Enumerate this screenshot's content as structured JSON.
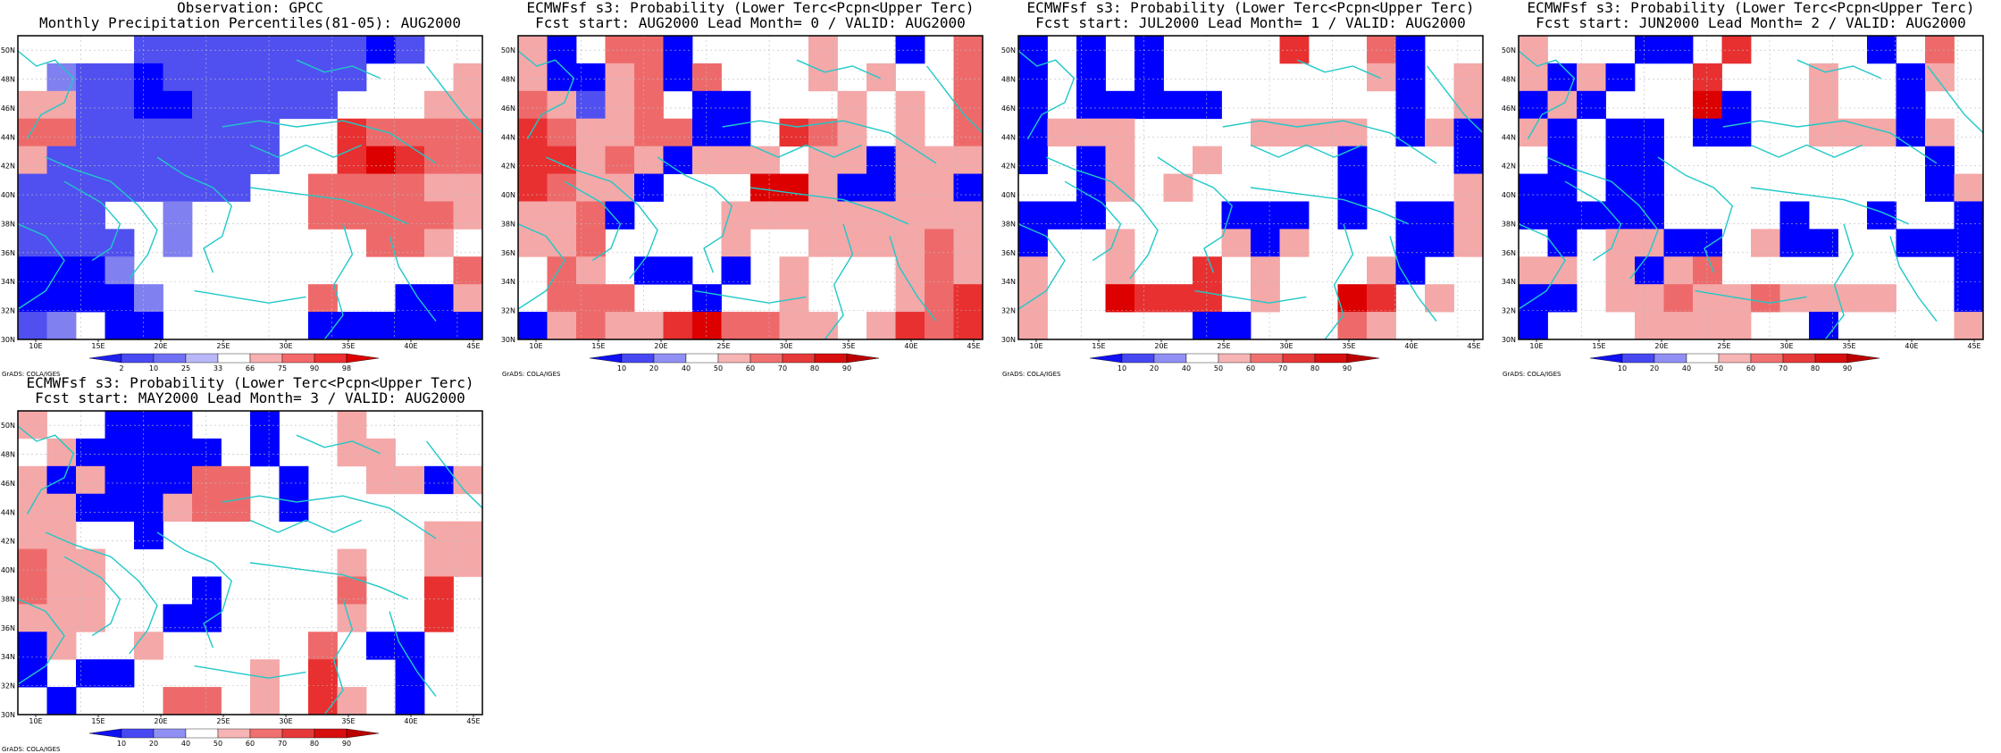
{
  "lon_labels": [
    "10E",
    "15E",
    "20E",
    "25E",
    "30E",
    "35E",
    "40E",
    "45E"
  ],
  "lat_labels": [
    "30N",
    "32N",
    "34N",
    "36N",
    "38N",
    "40N",
    "42N",
    "44N",
    "46N",
    "48N",
    "50N"
  ],
  "credit": "GrADS: COLA/IGES",
  "colorbar_obs": {
    "labels": [
      "2",
      "10",
      "25",
      "33",
      "66",
      "75",
      "90",
      "98"
    ],
    "colors": [
      "#2020ee",
      "#4a4af2",
      "#7070f4",
      "#b8b8f8",
      "#ffffff",
      "#f8b0b0",
      "#f46a6a",
      "#ee3030",
      "#dd0000"
    ]
  },
  "colorbar_fc": {
    "labels": [
      "10",
      "20",
      "40",
      "50",
      "60",
      "70",
      "80",
      "90"
    ],
    "colors": [
      "#1010f0",
      "#4848f2",
      "#9090f4",
      "#ffffff",
      "#f6b4b4",
      "#f07070",
      "#e63a3a",
      "#d80f0f",
      "#bb0000"
    ]
  },
  "legend_cat_colors": {
    "B3": "#0000ff",
    "B2": "#5050f0",
    "B1": "#8080f0",
    "W": "#ffffff",
    "R1": "#f4a8a8",
    "R2": "#ee6a6a",
    "R3": "#e83030",
    "R4": "#dd0000"
  },
  "panels": [
    {
      "title_line1": "Observation: GPCC",
      "title_line2": "Monthly Precipitation Percentiles(81-05): AUG2000",
      "colorbar": "obs",
      "grid": [
        "WWWWBBBBBBBBBWWW",
        "W1BBBBBBBBB3B3WW",
        "R1R1BBBBBBBWWWR1R1",
        "RRBBBBBBWWWRRRRR",
        "R1BBBBBBBWWWR2R3R3RR",
        "BBBBBBBBWWWRRRR1R1",
        "BBBWWB1WWWWRRRRRR1",
        "BBBBWB1WWWWWWRR1WW",
        "BBB1WWWWWWWWWWWR",
        "BBBB1WWWWWWR1WWBR",
        "B1WBBWWWWWWBBBBB"
      ]
    },
    {
      "title_line1": "ECMWFsf s3: Probability (Lower Terc<Pcpn<Upper Terc)",
      "title_line2": "Fcst start: AUG2000  Lead Month= 0 / VALID: AUG2000",
      "colorbar": "fc"
    },
    {
      "title_line1": "ECMWFsf s3: Probability (Lower Terc<Pcpn<Upper Terc)",
      "title_line2": "Fcst start: JUL2000  Lead Month= 1 / VALID: AUG2000",
      "colorbar": "fc"
    },
    {
      "title_line1": "ECMWFsf s3: Probability (Lower Terc<Pcpn<Upper Terc)",
      "title_line2": "Fcst start: JUN2000  Lead Month= 2 / VALID: AUG2000",
      "colorbar": "fc"
    },
    {
      "title_line1": "ECMWFsf s3: Probability (Lower Terc<Pcpn<Upper Terc)",
      "title_line2": "Fcst start: MAY2000  Lead Month= 3 / VALID: AUG2000",
      "colorbar": "fc"
    }
  ]
}
